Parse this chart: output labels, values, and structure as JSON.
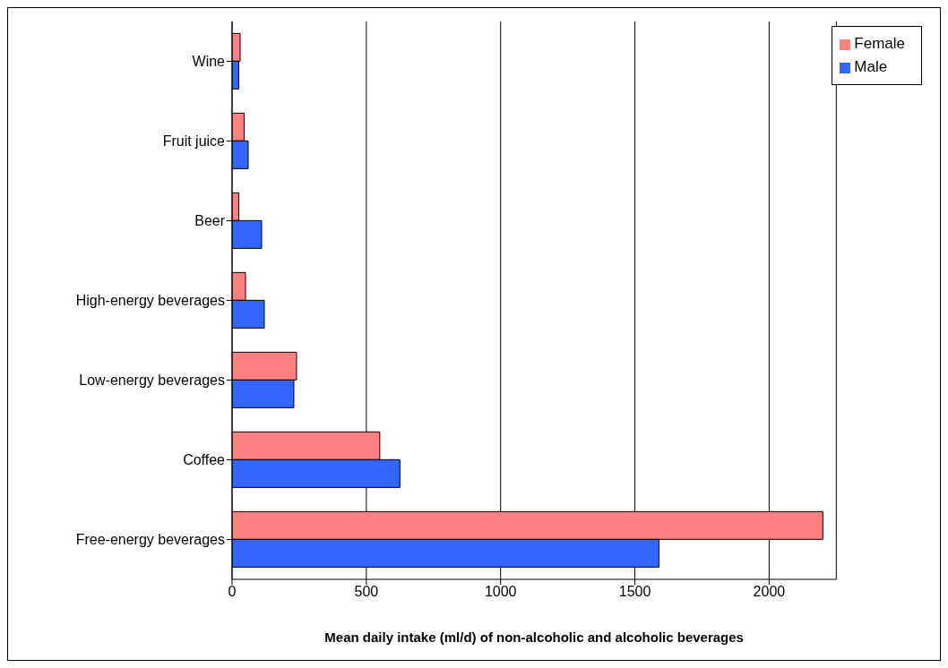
{
  "chart_data": {
    "type": "bar",
    "orientation": "horizontal",
    "xlabel": "Mean daily intake (ml/d) of non-alcoholic and alcoholic beverages",
    "categories": [
      "Wine",
      "Fruit juice",
      "Beer",
      "High-energy beverages",
      "Low-energy beverages",
      "Coffee",
      "Free-energy beverages"
    ],
    "series": [
      {
        "name": "Female",
        "color": "#ff8080",
        "values": [
          30,
          45,
          25,
          50,
          240,
          550,
          2200
        ]
      },
      {
        "name": "Male",
        "color": "#3366ff",
        "values": [
          25,
          60,
          110,
          120,
          230,
          625,
          1590
        ]
      }
    ],
    "xlim": [
      0,
      2250
    ],
    "xticks": [
      0,
      500,
      1000,
      1500,
      2000
    ],
    "grid": "x",
    "legend": "top right"
  }
}
